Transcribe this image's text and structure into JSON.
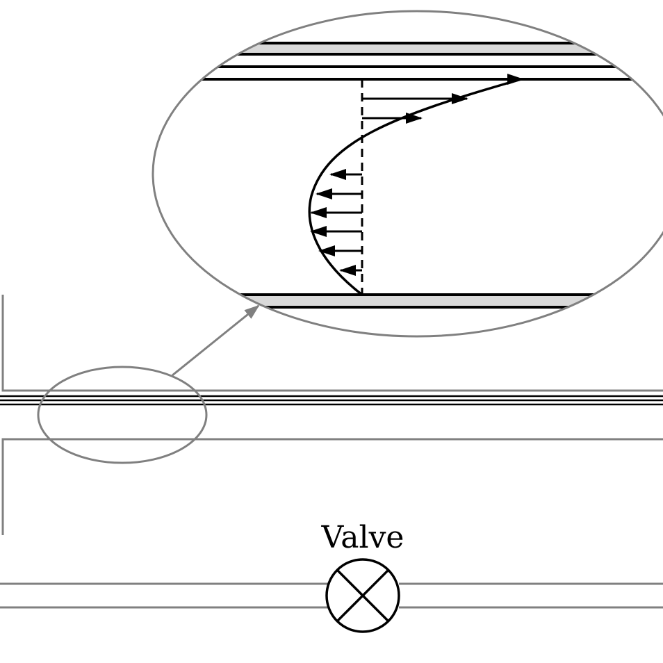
{
  "labels": {
    "valve": "Valve"
  },
  "colors": {
    "outline_gray": "#808080",
    "ink": "#000000",
    "wall_fill": "#d9d9d9",
    "background": "#ffffff"
  },
  "icons": {
    "valve_symbol": "circle-with-x"
  }
}
